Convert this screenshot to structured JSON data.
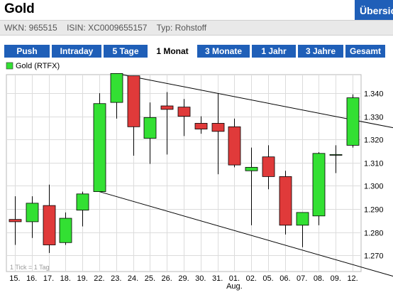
{
  "header": {
    "title": "Gold",
    "overview_tab": "Übersicht",
    "wkn": "WKN: 965515",
    "isin": "ISIN: XC0009655157",
    "typ": "Typ: Rohstoff"
  },
  "tabs": [
    {
      "label": "Push",
      "active": false
    },
    {
      "label": "Intraday",
      "active": false
    },
    {
      "label": "5 Tage",
      "active": false
    },
    {
      "label": "1 Monat",
      "active": true
    },
    {
      "label": "3 Monate",
      "active": false
    },
    {
      "label": "1 Jahr",
      "active": false
    },
    {
      "label": "3 Jahre",
      "active": false
    },
    {
      "label": "Gesamt",
      "active": false
    }
  ],
  "colors": {
    "tab_blue": "#1f5fb8",
    "up": "#33e033",
    "down": "#e03a3a"
  },
  "chart_data": {
    "type": "candlestick",
    "legend": "Gold (RTFX)",
    "note": "1 Tick = 1 Tag",
    "month_label": "Aug.",
    "month_label_under": "01.",
    "grid": true,
    "ylim": [
      1.263,
      1.348
    ],
    "yticks": [
      "1.270",
      "1.280",
      "1.290",
      "1.300",
      "1.310",
      "1.320",
      "1.330",
      "1.340"
    ],
    "yvalues": [
      1.27,
      1.28,
      1.29,
      1.3,
      1.31,
      1.32,
      1.33,
      1.34
    ],
    "candles": [
      {
        "date": "15.",
        "open": 1.2855,
        "high": 1.2955,
        "low": 1.2745,
        "close": 1.2845
      },
      {
        "date": "16.",
        "open": 1.2845,
        "high": 1.2955,
        "low": 1.2775,
        "close": 1.2925
      },
      {
        "date": "17.",
        "open": 1.2915,
        "high": 1.3005,
        "low": 1.271,
        "close": 1.2745
      },
      {
        "date": "18.",
        "open": 1.2755,
        "high": 1.2885,
        "low": 1.2745,
        "close": 1.286
      },
      {
        "date": "19.",
        "open": 1.2895,
        "high": 1.2975,
        "low": 1.2825,
        "close": 1.2965
      },
      {
        "date": "22.",
        "open": 1.2975,
        "high": 1.34,
        "low": 1.2975,
        "close": 1.3355
      },
      {
        "date": "23.",
        "open": 1.336,
        "high": 1.3485,
        "low": 1.329,
        "close": 1.3485
      },
      {
        "date": "24.",
        "open": 1.3475,
        "high": 1.3475,
        "low": 1.313,
        "close": 1.3255
      },
      {
        "date": "25.",
        "open": 1.3205,
        "high": 1.336,
        "low": 1.3095,
        "close": 1.3295
      },
      {
        "date": "26.",
        "open": 1.3345,
        "high": 1.3405,
        "low": 1.3135,
        "close": 1.333
      },
      {
        "date": "29.",
        "open": 1.334,
        "high": 1.3375,
        "low": 1.3215,
        "close": 1.33
      },
      {
        "date": "30.",
        "open": 1.327,
        "high": 1.33,
        "low": 1.3225,
        "close": 1.3245
      },
      {
        "date": "31.",
        "open": 1.327,
        "high": 1.34,
        "low": 1.305,
        "close": 1.3235
      },
      {
        "date": "01.",
        "open": 1.3255,
        "high": 1.329,
        "low": 1.308,
        "close": 1.309
      },
      {
        "date": "02.",
        "open": 1.3065,
        "high": 1.3165,
        "low": 1.283,
        "close": 1.308
      },
      {
        "date": "05.",
        "open": 1.3125,
        "high": 1.3175,
        "low": 1.2985,
        "close": 1.304
      },
      {
        "date": "06.",
        "open": 1.304,
        "high": 1.3065,
        "low": 1.279,
        "close": 1.283
      },
      {
        "date": "07.",
        "open": 1.283,
        "high": 1.2885,
        "low": 1.2735,
        "close": 1.2885
      },
      {
        "date": "08.",
        "open": 1.287,
        "high": 1.3145,
        "low": 1.283,
        "close": 1.314
      },
      {
        "date": "09.",
        "open": 1.3135,
        "high": 1.3175,
        "low": 1.3055,
        "close": 1.3135
      },
      {
        "date": "12.",
        "open": 1.3175,
        "high": 1.3395,
        "low": 1.3165,
        "close": 1.338
      }
    ],
    "trendlines": [
      {
        "from": {
          "date": "23.",
          "value": 1.3485
        },
        "to": {
          "date": "12.",
          "value": 1.3285
        }
      },
      {
        "from": {
          "date": "22.",
          "value": 1.2975
        },
        "to": {
          "date": "12.",
          "value": 1.266
        }
      }
    ]
  }
}
